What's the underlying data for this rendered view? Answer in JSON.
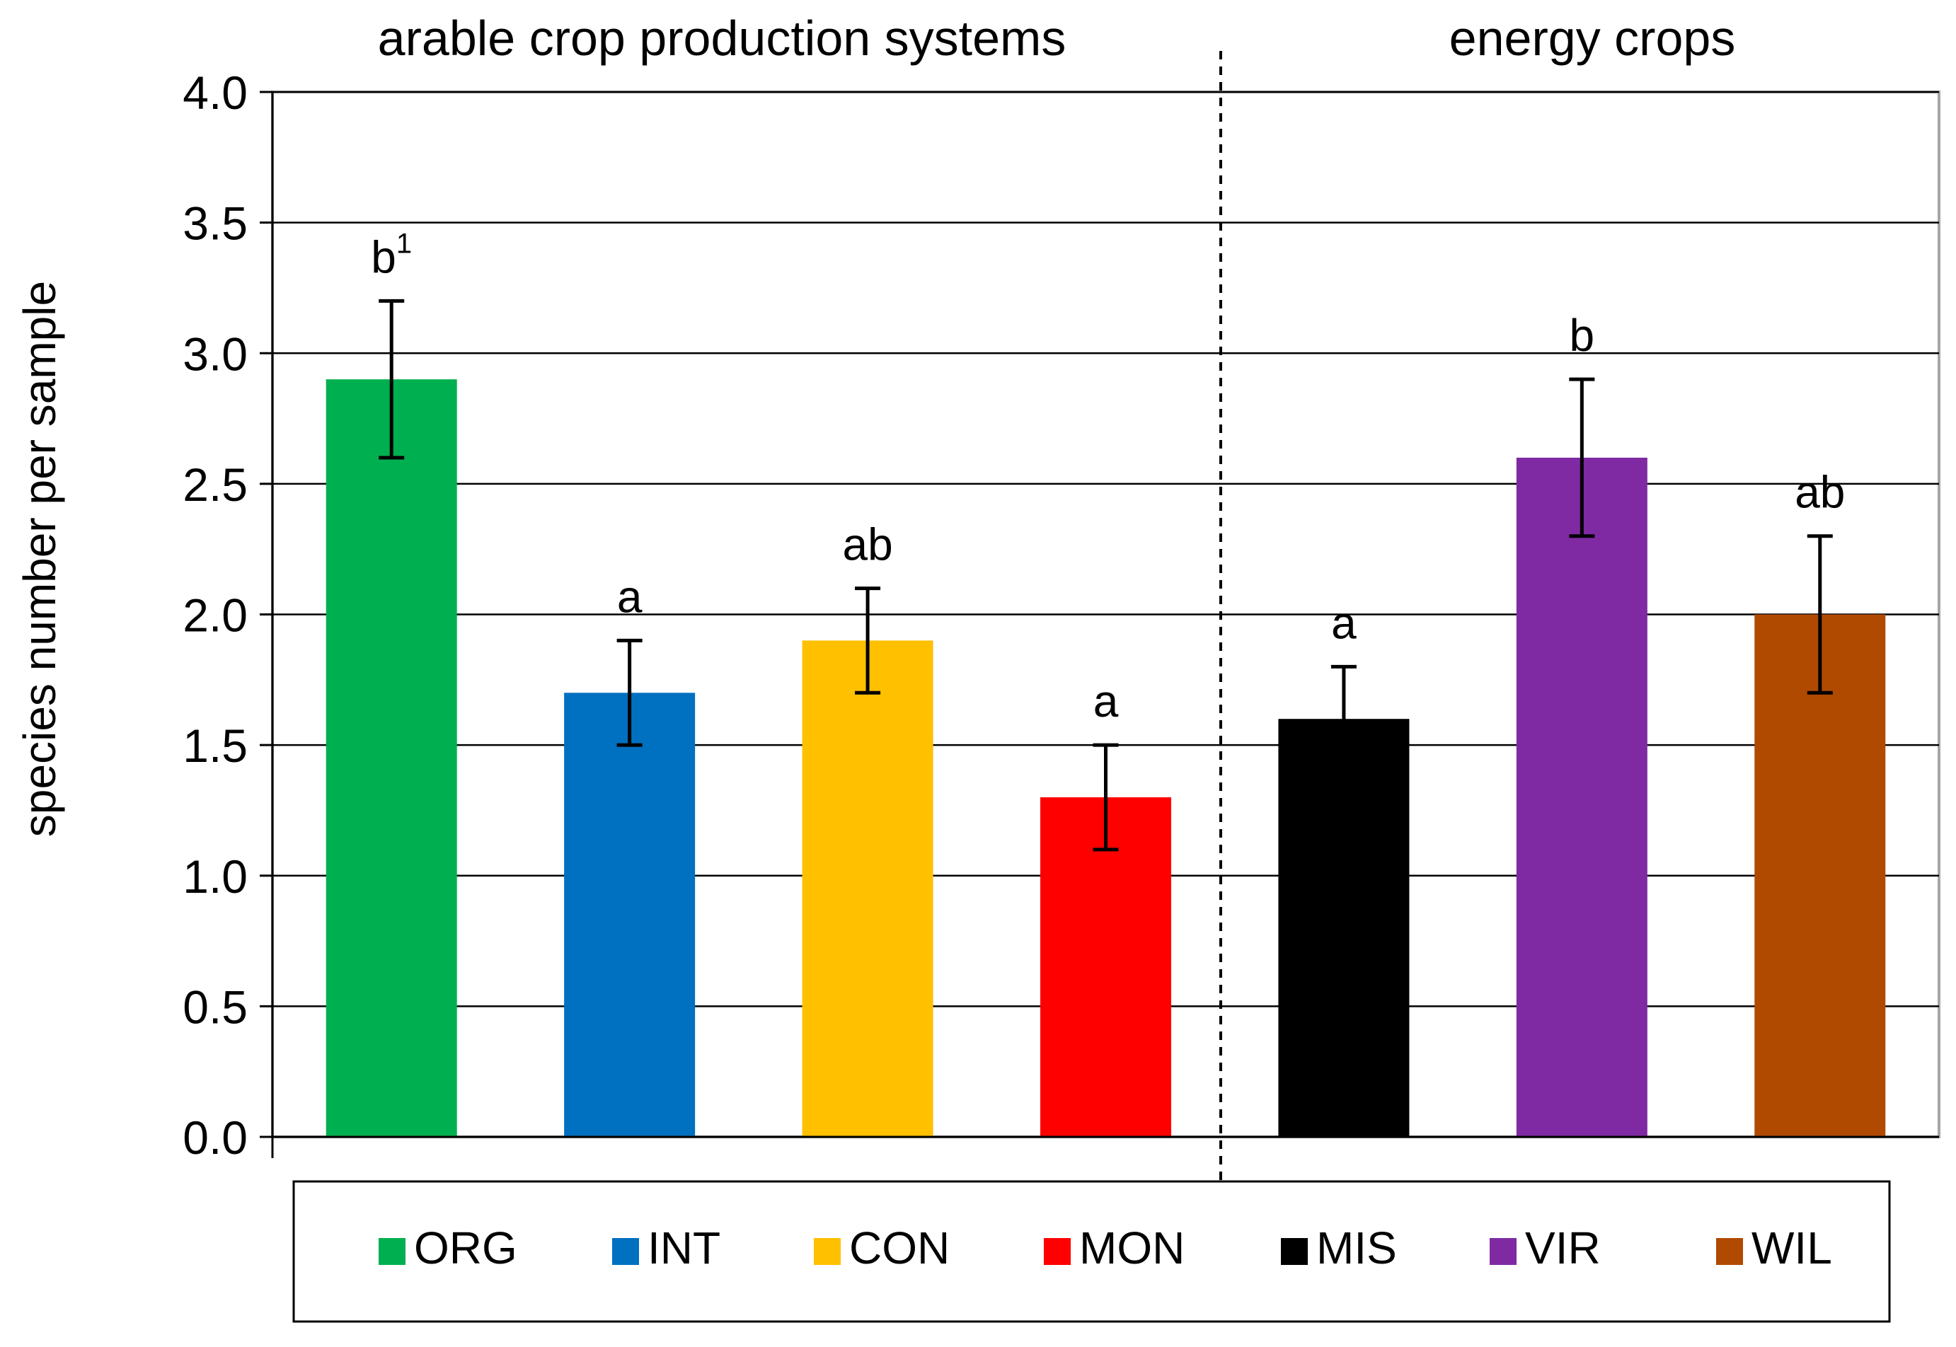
{
  "chart_data": {
    "type": "bar",
    "ylabel": "species number per sample",
    "xlabel": "",
    "ylim": [
      0,
      4.0
    ],
    "yticks": [
      "0.0",
      "0.5",
      "1.0",
      "1.5",
      "2.0",
      "2.5",
      "3.0",
      "3.5",
      "4.0"
    ],
    "grid": true,
    "groups": [
      {
        "title": "arable crop production systems",
        "categories": [
          "ORG",
          "INT",
          "CON",
          "MON"
        ]
      },
      {
        "title": "energy crops",
        "categories": [
          "MIS",
          "VIR",
          "WIL"
        ]
      }
    ],
    "categories": [
      "ORG",
      "INT",
      "CON",
      "MON",
      "MIS",
      "VIR",
      "WIL"
    ],
    "values": [
      2.9,
      1.7,
      1.9,
      1.3,
      1.6,
      2.6,
      2.0
    ],
    "errors": [
      0.3,
      0.2,
      0.2,
      0.2,
      0.2,
      0.3,
      0.3
    ],
    "sig_letters": [
      "b",
      "a",
      "ab",
      "a",
      "a",
      "b",
      "ab"
    ],
    "footnote_mark": "1",
    "colors": [
      "#00b050",
      "#0070c0",
      "#ffc000",
      "#ff0000",
      "#000000",
      "#7f2aa3",
      "#b04a00"
    ],
    "legend": {
      "position": "bottom",
      "entries": [
        "ORG",
        "INT",
        "CON",
        "MON",
        "MIS",
        "VIR",
        "WIL"
      ]
    }
  }
}
